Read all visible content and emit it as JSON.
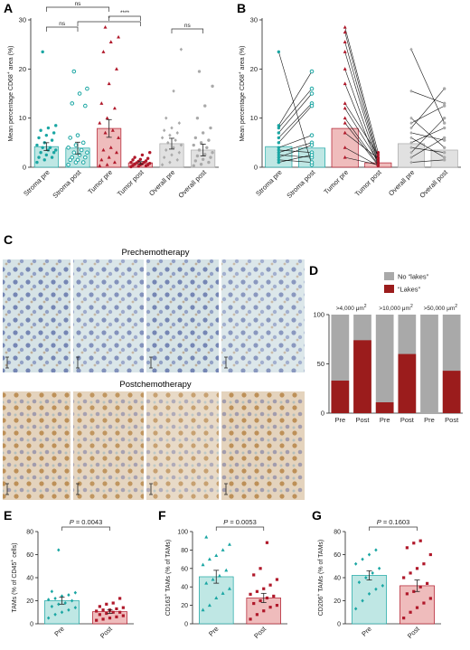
{
  "colors": {
    "teal": "#1aa6a3",
    "teal_fill": "#bfe7e4",
    "red": "#b0182a",
    "red_fill": "#efbcbc",
    "gray": "#a9a9a9",
    "gray_fill": "#e1e1e1",
    "dark_red": "#9b1c1c"
  },
  "chart_data": [
    {
      "panel": "A",
      "type": "bar",
      "ylabel": "Mean percentage CD68+ area (%)",
      "ylim": [
        0,
        30
      ],
      "yticks": [
        0,
        10,
        20,
        30
      ],
      "categories": [
        "Stroma pre",
        "Stroma post",
        "Tumor pre",
        "Tumor post",
        "Overall pre",
        "Overall post"
      ],
      "values": [
        4.2,
        3.9,
        7.9,
        0.9,
        4.8,
        3.5
      ],
      "errors": [
        0.8,
        1.2,
        1.8,
        0.25,
        1.1,
        1.2
      ],
      "significance": [
        {
          "groups": [
            "Stroma pre",
            "Tumor pre"
          ],
          "label": "ns"
        },
        {
          "groups": [
            "Stroma post",
            "Tumor post"
          ],
          "label": "*"
        },
        {
          "groups": [
            "Tumor pre",
            "Tumor post"
          ],
          "label": "****"
        },
        {
          "groups": [
            "Stroma pre",
            "Stroma post"
          ],
          "label": "ns"
        },
        {
          "groups": [
            "Overall pre",
            "Overall post"
          ],
          "label": "ns"
        }
      ],
      "points": [
        [
          1,
          1.5,
          2,
          2,
          2.5,
          3,
          3,
          3.5,
          3.5,
          4,
          4,
          4.5,
          5,
          5.5,
          6,
          6.5,
          7,
          7.5,
          8,
          8.5,
          23.5
        ],
        [
          0.5,
          1,
          1,
          1.5,
          1.5,
          2,
          2,
          2.5,
          3,
          3,
          3.5,
          4,
          4.5,
          5,
          6,
          6.5,
          12.5,
          13,
          15,
          16,
          19.5
        ],
        [
          0.3,
          0.5,
          1,
          1.5,
          2,
          3,
          3.5,
          4,
          6,
          7,
          7.5,
          9,
          10,
          12,
          13,
          17,
          20,
          23.5,
          25.5,
          26.5,
          28.5
        ],
        [
          0.1,
          0.2,
          0.3,
          0.4,
          0.5,
          0.5,
          0.6,
          0.7,
          0.8,
          0.9,
          1,
          1,
          1.2,
          1.3,
          1.5,
          1.6,
          1.8,
          2,
          2.5,
          3
        ],
        [
          0.5,
          1,
          1.5,
          2,
          2.5,
          3,
          3.5,
          4,
          4.5,
          5,
          5.5,
          6,
          6.5,
          7,
          7.5,
          8,
          9,
          10,
          15.5,
          24
        ],
        [
          0.3,
          0.6,
          1,
          1.3,
          1.6,
          2,
          2.3,
          2.6,
          3,
          3.5,
          4,
          4.5,
          5,
          5.5,
          6,
          7,
          8,
          10,
          12.5,
          16.5,
          19.5
        ]
      ]
    },
    {
      "panel": "B",
      "type": "line",
      "ylabel": "Mean percentage CD68+ area (%)",
      "ylim": [
        0,
        30
      ],
      "yticks": [
        0,
        10,
        20,
        30
      ],
      "categories": [
        "Stroma pre",
        "Stroma post",
        "Tumor pre",
        "Tumor post",
        "Overall pre",
        "Overall post"
      ],
      "values": [
        4.2,
        3.9,
        7.9,
        0.9,
        4.8,
        3.5
      ],
      "pairs": [
        [
          [
            23.5,
            0.5
          ],
          [
            8.5,
            19.5
          ],
          [
            8,
            16
          ],
          [
            7,
            15
          ],
          [
            6,
            13
          ],
          [
            5,
            12.5
          ],
          [
            4,
            6.5
          ],
          [
            3.5,
            3
          ],
          [
            3,
            5
          ],
          [
            2.5,
            2
          ],
          [
            2,
            4.5
          ],
          [
            1.5,
            1
          ],
          [
            1,
            2.5
          ]
        ],
        [
          [
            28.5,
            3
          ],
          [
            27.5,
            2
          ],
          [
            25.5,
            1.5
          ],
          [
            23.5,
            1
          ],
          [
            20,
            0.8
          ],
          [
            17,
            0.5
          ],
          [
            13,
            2.5
          ],
          [
            12,
            1.2
          ],
          [
            10,
            0.6
          ],
          [
            9,
            0.4
          ],
          [
            7,
            1.8
          ],
          [
            4,
            0.3
          ],
          [
            2,
            0.5
          ]
        ],
        [
          [
            24,
            9
          ],
          [
            15.5,
            13
          ],
          [
            10,
            4
          ],
          [
            9,
            12.5
          ],
          [
            8,
            16
          ],
          [
            7,
            5.5
          ],
          [
            6,
            2
          ],
          [
            5,
            8
          ],
          [
            4,
            3
          ],
          [
            3,
            10
          ],
          [
            2,
            6
          ],
          [
            1,
            1.5
          ]
        ]
      ]
    },
    {
      "panel": "D",
      "type": "bar",
      "stacked": true,
      "ylim": [
        0,
        100
      ],
      "yticks": [
        0,
        50,
        100
      ],
      "groups": [
        ">4,000 μm2",
        ">10,000 μm2",
        ">50,000 μm2"
      ],
      "categories": [
        "Pre",
        "Post",
        "Pre",
        "Post",
        "Pre",
        "Post"
      ],
      "series": [
        {
          "name": "“Lakes”",
          "values": [
            33,
            74,
            11,
            60,
            0,
            43
          ]
        },
        {
          "name": "No “lakes”",
          "values": [
            67,
            26,
            89,
            40,
            100,
            57
          ]
        }
      ],
      "legend": "top-right"
    },
    {
      "panel": "E",
      "type": "bar",
      "ylabel": "TAMs (% of CD45+ cells)",
      "ylim": [
        0,
        80
      ],
      "yticks": [
        0,
        20,
        40,
        60,
        80
      ],
      "categories": [
        "Pre",
        "Post"
      ],
      "values": [
        20,
        10.5
      ],
      "errors": [
        3,
        1.5
      ],
      "pvalue": "P = 0.0043",
      "points": [
        [
          5,
          8,
          10,
          12,
          14,
          15,
          17,
          18,
          20,
          21,
          22,
          24,
          25,
          27,
          28,
          64
        ],
        [
          3,
          4,
          5,
          6,
          7,
          8,
          9,
          10,
          10,
          11,
          12,
          12,
          13,
          14,
          15,
          17,
          18,
          22
        ]
      ]
    },
    {
      "panel": "F",
      "type": "bar",
      "ylabel": "CD163+ TAMs (% of TAMs)",
      "ylim": [
        0,
        100
      ],
      "yticks": [
        0,
        20,
        40,
        60,
        80,
        100
      ],
      "categories": [
        "Pre",
        "Post"
      ],
      "values": [
        51,
        28
      ],
      "errors": [
        7,
        5
      ],
      "pvalue": "P = 0.0053",
      "points": [
        [
          15,
          20,
          28,
          33,
          38,
          44,
          48,
          52,
          58,
          64,
          70,
          74,
          80,
          86,
          94
        ],
        [
          5,
          10,
          14,
          18,
          20,
          22,
          25,
          28,
          30,
          32,
          35,
          38,
          42,
          48,
          53,
          60,
          88
        ]
      ]
    },
    {
      "panel": "G",
      "type": "bar",
      "ylabel": "CD206+ TAMs (% of TAMs)",
      "ylim": [
        0,
        80
      ],
      "yticks": [
        0,
        20,
        40,
        60,
        80
      ],
      "categories": [
        "Pre",
        "Post"
      ],
      "values": [
        42,
        33
      ],
      "errors": [
        4,
        5
      ],
      "pvalue": "P = 0.1603",
      "points": [
        [
          13,
          20,
          26,
          30,
          33,
          36,
          40,
          44,
          48,
          52,
          56,
          60,
          64
        ],
        [
          5,
          10,
          14,
          18,
          22,
          26,
          28,
          32,
          35,
          40,
          44,
          48,
          52,
          60,
          66,
          70,
          72
        ]
      ]
    }
  ],
  "panelC": {
    "label": "C",
    "title_pre": "Prechemotherapy",
    "title_post": "Postchemotherapy"
  },
  "legendD": {
    "no_lakes": "No “lakes”",
    "lakes": "“Lakes”"
  }
}
